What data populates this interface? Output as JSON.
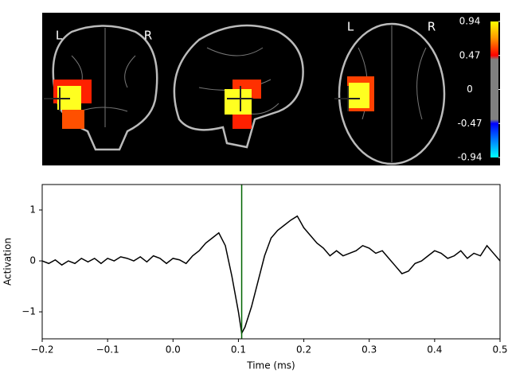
{
  "glass_brain": {
    "labels": [
      "L",
      "R",
      "L",
      "R"
    ],
    "colorbar": {
      "lim": [
        -0.94,
        0.94
      ],
      "ticks": [
        0.94,
        0.47,
        0,
        -0.47,
        -0.94
      ]
    }
  },
  "chart_data": {
    "type": "line",
    "xlabel": "Time (ms)",
    "ylabel": "Activation",
    "color": "#000000",
    "x": [
      -0.2,
      -0.19,
      -0.18,
      -0.17,
      -0.16,
      -0.15,
      -0.14,
      -0.13,
      -0.12,
      -0.11,
      -0.1,
      -0.09,
      -0.08,
      -0.07,
      -0.06,
      -0.05,
      -0.04,
      -0.03,
      -0.02,
      -0.01,
      0,
      0.01,
      0.02,
      0.03,
      0.04,
      0.05,
      0.06,
      0.07,
      0.08,
      0.09,
      0.1,
      0.105,
      0.11,
      0.12,
      0.13,
      0.14,
      0.15,
      0.16,
      0.17,
      0.18,
      0.19,
      0.2,
      0.21,
      0.22,
      0.23,
      0.24,
      0.25,
      0.26,
      0.27,
      0.28,
      0.29,
      0.3,
      0.31,
      0.32,
      0.33,
      0.34,
      0.35,
      0.36,
      0.37,
      0.38,
      0.39,
      0.4,
      0.41,
      0.42,
      0.43,
      0.44,
      0.45,
      0.46,
      0.47,
      0.48,
      0.49,
      0.5
    ],
    "values": [
      0,
      -0.05,
      0.02,
      -0.08,
      0,
      -0.05,
      0.05,
      -0.02,
      0.05,
      -0.05,
      0.05,
      0,
      0.08,
      0.05,
      0,
      0.08,
      -0.02,
      0.1,
      0.05,
      -0.05,
      0.05,
      0.02,
      -0.05,
      0.1,
      0.2,
      0.35,
      0.45,
      0.55,
      0.3,
      -0.3,
      -1,
      -1.42,
      -1.3,
      -0.9,
      -0.4,
      0.1,
      0.45,
      0.6,
      0.7,
      0.8,
      0.88,
      0.65,
      0.5,
      0.35,
      0.25,
      0.1,
      0.2,
      0.1,
      0.15,
      0.2,
      0.3,
      0.25,
      0.15,
      0.2,
      0.05,
      -0.1,
      -0.25,
      -0.2,
      -0.05,
      0,
      0.1,
      0.2,
      0.15,
      0.05,
      0.1,
      0.2,
      0.05,
      0.15,
      0.1,
      0.3,
      0.15,
      0
    ],
    "vline": 0.105,
    "vline_color": "#006400",
    "xlim": [
      -0.2,
      0.5
    ],
    "xticks": [
      {
        "value": -0.2,
        "label": "−0.2"
      },
      {
        "value": -0.1,
        "label": "−0.1"
      },
      {
        "value": 0,
        "label": "0.0"
      },
      0.1,
      0.2,
      0.3,
      0.4,
      0.5
    ],
    "ylim": [
      -1.53,
      1.5
    ],
    "yticks": [
      {
        "value": -1,
        "label": "−1"
      },
      0,
      1
    ]
  }
}
